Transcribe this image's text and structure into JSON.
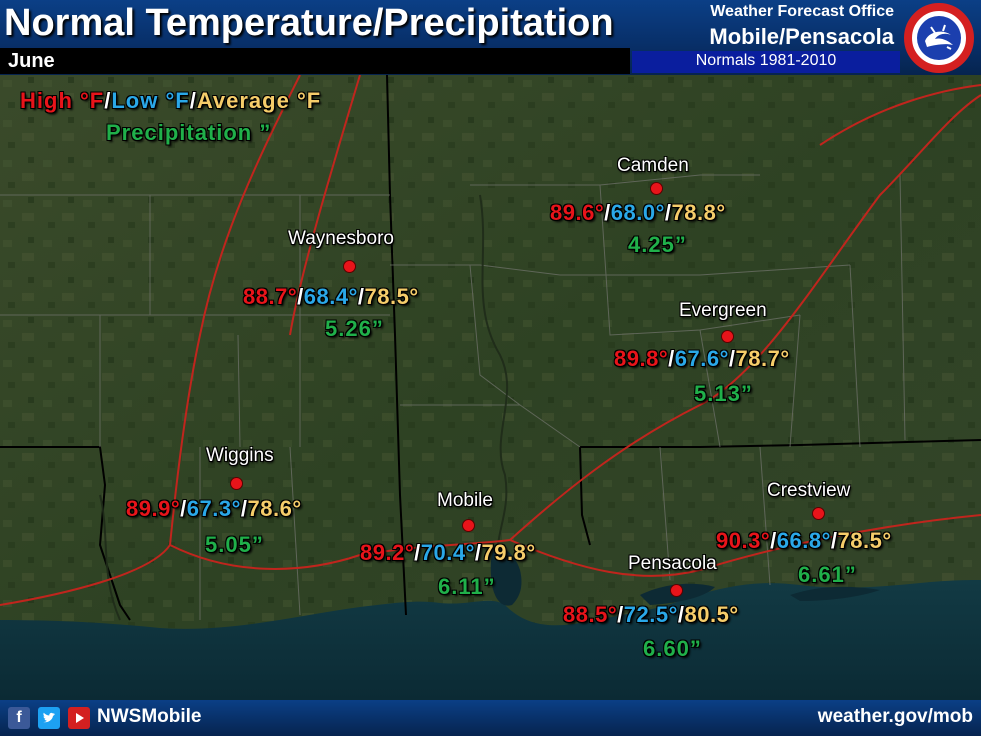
{
  "header": {
    "title": "Normal Temperature/Precipitation",
    "month": "June",
    "office_line1": "Weather Forecast Office",
    "office_line2": "Mobile/Pensacola",
    "normals_period": "Normals 1981-2010"
  },
  "legend": {
    "high": "High °F",
    "low": "Low °F",
    "average": "Average °F",
    "slash": "/",
    "precip": "Precipitation ”"
  },
  "colors": {
    "high": "#e8141a",
    "low": "#2aa8e8",
    "average": "#f6cd6a",
    "precip": "#20b04a"
  },
  "stations": [
    {
      "id": "camden",
      "name": "Camden",
      "high": "89.6°",
      "low": "68.0°",
      "avg": "78.8°",
      "precip": "4.25”"
    },
    {
      "id": "waynesboro",
      "name": "Waynesboro",
      "high": "88.7°",
      "low": "68.4°",
      "avg": "78.5°",
      "precip": "5.26”"
    },
    {
      "id": "evergreen",
      "name": "Evergreen",
      "high": "89.8°",
      "low": "67.6°",
      "avg": "78.7°",
      "precip": "5.13”"
    },
    {
      "id": "wiggins",
      "name": "Wiggins",
      "high": "89.9°",
      "low": "67.3°",
      "avg": "78.6°",
      "precip": "5.05”"
    },
    {
      "id": "mobile",
      "name": "Mobile",
      "high": "89.2°",
      "low": "70.4°",
      "avg": "79.8°",
      "precip": "6.11”"
    },
    {
      "id": "crestview",
      "name": "Crestview",
      "high": "90.3°",
      "low": "66.8°",
      "avg": "78.5°",
      "precip": "6.61”"
    },
    {
      "id": "pensacola",
      "name": "Pensacola",
      "high": "88.5°",
      "low": "72.5°",
      "avg": "80.5°",
      "precip": "6.60”"
    }
  ],
  "footer": {
    "handle": "NWSMobile",
    "website": "weather.gov/mob",
    "icons": [
      "facebook-icon",
      "twitter-icon",
      "youtube-icon"
    ]
  }
}
